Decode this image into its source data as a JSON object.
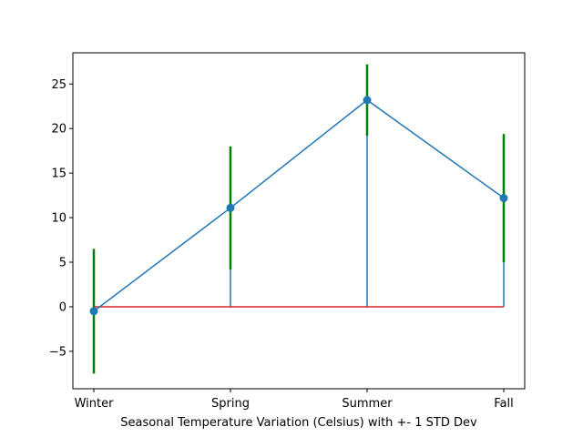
{
  "chart_data": {
    "type": "line",
    "title": "",
    "xlabel": "Seasonal Temperature Variation (Celsius) with +- 1 STD Dev",
    "ylabel": "",
    "categories": [
      "Winter",
      "Spring",
      "Summer",
      "Fall"
    ],
    "ylim": [
      -9.2,
      28.5
    ],
    "yticks": [
      -5,
      0,
      5,
      10,
      15,
      20,
      25
    ],
    "ytick_labels": [
      "−5",
      "0",
      "5",
      "10",
      "15",
      "20",
      "25"
    ],
    "grid": false,
    "series": [
      {
        "values": [
          -0.5,
          11.1,
          23.2,
          12.2
        ],
        "errors": [
          7.0,
          6.9,
          4.0,
          7.2
        ],
        "stem_baseline": 0
      }
    ],
    "colors": {
      "line": "#1f77b4",
      "marker": "#1f77b4",
      "stem": "#1f77b4",
      "baseline": "#d62728",
      "errorbar": "#008000",
      "axes": "#000000"
    }
  }
}
